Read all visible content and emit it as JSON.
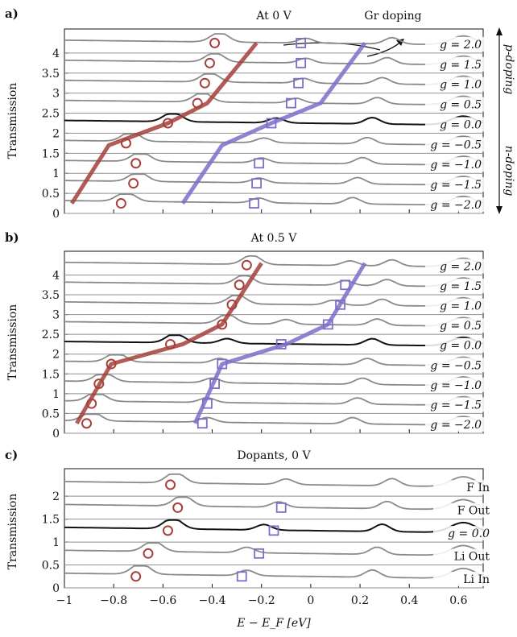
{
  "figure": {
    "xlabel": "E − E_F  [eV]",
    "x_ticks": [
      -1,
      -0.8,
      -0.6,
      -0.4,
      -0.2,
      0,
      0.2,
      0.4,
      0.6
    ],
    "x_tick_labels": [
      "−1",
      "−0.8",
      "−0.6",
      "−0.4",
      "−0.2",
      "0",
      "0.2",
      "0.4",
      "0.6"
    ],
    "ylabel": "Transmission",
    "colors": {
      "n_path": "#a5403b",
      "p_path": "#7a6fc9",
      "baseline": "#111111",
      "curve": "#8a8a8a"
    }
  },
  "annotations": {
    "gr_doping": "Gr doping",
    "p_doping": "p-doping",
    "n_doping": "n-doping"
  },
  "chart_data": [
    {
      "panel": "a)",
      "type": "line",
      "title": "At 0 V",
      "xlim": [
        -1,
        0.7
      ],
      "ylim": [
        0,
        4.6
      ],
      "y_ticks": [
        0,
        0.5,
        1,
        1.5,
        2,
        2.5,
        3,
        3.5,
        4
      ],
      "y_tick_labels": [
        "0",
        "0.5",
        "1",
        "1.5",
        "2",
        "2.5",
        "3",
        "3.5",
        "4"
      ],
      "series_labels": [
        "g = 2.0",
        "g = 1.5",
        "g = 1.0",
        "g = 0.5",
        "g = 0.0",
        "g = −0.5",
        "g = −1.0",
        "g = −1.5",
        "g = −2.0"
      ],
      "offsets": [
        4,
        3.5,
        3,
        2.5,
        2,
        1.5,
        1,
        0.5,
        0
      ],
      "circles": [
        [
          -0.39,
          4.25
        ],
        [
          -0.41,
          3.75
        ],
        [
          -0.43,
          3.25
        ],
        [
          -0.46,
          2.75
        ],
        [
          -0.58,
          2.25
        ],
        [
          -0.75,
          1.75
        ],
        [
          -0.71,
          1.25
        ],
        [
          -0.72,
          0.75
        ],
        [
          -0.77,
          0.25
        ]
      ],
      "squares": [
        [
          -0.04,
          4.25
        ],
        [
          -0.04,
          3.75
        ],
        [
          -0.05,
          3.25
        ],
        [
          -0.08,
          2.75
        ],
        [
          -0.16,
          2.25
        ],
        [
          -0.21,
          1.25
        ],
        [
          -0.22,
          0.75
        ],
        [
          -0.23,
          0.25
        ]
      ],
      "n_line": [
        [
          -0.97,
          0.25
        ],
        [
          -0.82,
          1.7
        ],
        [
          -0.58,
          2.25
        ],
        [
          -0.42,
          2.75
        ],
        [
          -0.22,
          4.25
        ]
      ],
      "p_line": [
        [
          -0.52,
          0.25
        ],
        [
          -0.36,
          1.7
        ],
        [
          -0.16,
          2.25
        ],
        [
          0.04,
          2.75
        ],
        [
          0.22,
          4.25
        ]
      ]
    },
    {
      "panel": "b)",
      "type": "line",
      "title": "At 0.5 V",
      "xlim": [
        -1,
        0.7
      ],
      "ylim": [
        0,
        4.6
      ],
      "y_ticks": [
        0,
        0.5,
        1,
        1.5,
        2,
        2.5,
        3,
        3.5,
        4
      ],
      "y_tick_labels": [
        "0",
        "0.5",
        "1",
        "1.5",
        "2",
        "2.5",
        "3",
        "3.5",
        "4"
      ],
      "series_labels": [
        "g = 2.0",
        "g = 1.5",
        "g = 1.0",
        "g = 0.5",
        "g = 0.0",
        "g = −0.5",
        "g = −1.0",
        "g = −1.5",
        "g = −2.0"
      ],
      "offsets": [
        4,
        3.5,
        3,
        2.5,
        2,
        1.5,
        1,
        0.5,
        0
      ],
      "circles": [
        [
          -0.26,
          4.25
        ],
        [
          -0.29,
          3.75
        ],
        [
          -0.32,
          3.25
        ],
        [
          -0.36,
          2.75
        ],
        [
          -0.57,
          2.25
        ],
        [
          -0.81,
          1.75
        ],
        [
          -0.86,
          1.25
        ],
        [
          -0.89,
          0.75
        ],
        [
          -0.91,
          0.25
        ]
      ],
      "squares": [
        [
          0.14,
          3.75
        ],
        [
          0.12,
          3.25
        ],
        [
          0.07,
          2.75
        ],
        [
          -0.12,
          2.25
        ],
        [
          -0.36,
          1.75
        ],
        [
          -0.39,
          1.25
        ],
        [
          -0.42,
          0.75
        ],
        [
          -0.44,
          0.25
        ]
      ],
      "n_line": [
        [
          -0.95,
          0.25
        ],
        [
          -0.81,
          1.75
        ],
        [
          -0.52,
          2.25
        ],
        [
          -0.36,
          2.75
        ],
        [
          -0.2,
          4.3
        ]
      ],
      "p_line": [
        [
          -0.47,
          0.25
        ],
        [
          -0.36,
          1.75
        ],
        [
          -0.1,
          2.25
        ],
        [
          0.07,
          2.75
        ],
        [
          0.22,
          4.3
        ]
      ]
    },
    {
      "panel": "c)",
      "type": "line",
      "title": "Dopants, 0 V",
      "xlim": [
        -1,
        0.7
      ],
      "ylim": [
        0,
        2.6
      ],
      "y_ticks": [
        0,
        0.5,
        1,
        1.5,
        2
      ],
      "y_tick_labels": [
        "0",
        "0.5",
        "1",
        "1.5",
        "2"
      ],
      "series_labels": [
        "F In",
        "F Out",
        "g = 0.0",
        "Li Out",
        "Li In"
      ],
      "offsets": [
        2,
        1.5,
        1,
        0.5,
        0
      ],
      "circles": [
        [
          -0.57,
          2.25
        ],
        [
          -0.54,
          1.75
        ],
        [
          -0.58,
          1.25
        ],
        [
          -0.66,
          0.75
        ],
        [
          -0.71,
          0.25
        ]
      ],
      "squares": [
        [
          -0.12,
          1.75
        ],
        [
          -0.15,
          1.25
        ],
        [
          -0.21,
          0.75
        ],
        [
          -0.28,
          0.25
        ]
      ]
    }
  ]
}
